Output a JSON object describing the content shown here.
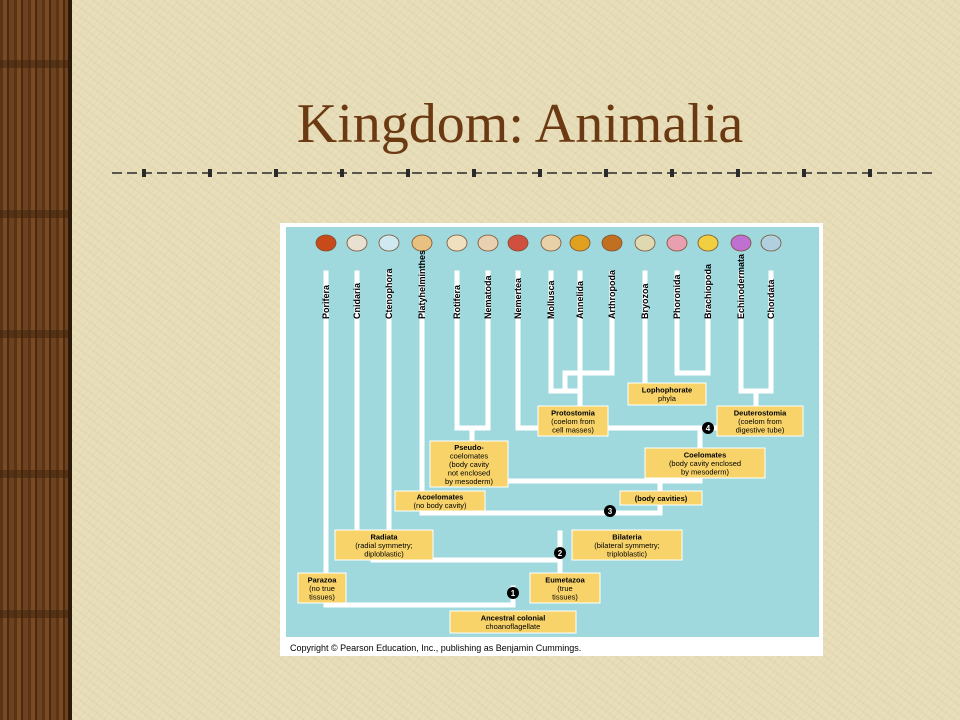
{
  "slide": {
    "title": "Kingdom: Animalia"
  },
  "diagram": {
    "taxa": [
      "Porifera",
      "Cnidaria",
      "Ctenophora",
      "Platyhelminthes",
      "Rotifera",
      "Nematoda",
      "Nemertea",
      "Mollusca",
      "Annelida",
      "Arthropoda",
      "Bryozoa",
      "Phoronida",
      "Brachiopoda",
      "Echinodermata",
      "Chordata"
    ],
    "boxes": [
      {
        "id": "ancestor",
        "lines": [
          "Ancestral colonial",
          "choanoflagellate"
        ]
      },
      {
        "id": "parazoa",
        "lines": [
          "Parazoa",
          "(no true",
          "tissues)"
        ]
      },
      {
        "id": "eumetazoa",
        "lines": [
          "Eumetazoa",
          "(true",
          "tissues)"
        ]
      },
      {
        "id": "radiata",
        "lines": [
          "Radiata",
          "(radial symmetry;",
          "diploblastic)"
        ]
      },
      {
        "id": "bilateria",
        "lines": [
          "Bilateria",
          "(bilateral symmetry;",
          "triploblastic)"
        ]
      },
      {
        "id": "acoelomates",
        "lines": [
          "Acoelomates",
          "(no body cavity)"
        ]
      },
      {
        "id": "body-cavities",
        "lines": [
          "(body cavities)"
        ]
      },
      {
        "id": "pseudocoelomates",
        "lines": [
          "Pseudo-",
          "coelomates",
          "(body cavity",
          "not enclosed",
          "by mesoderm)"
        ]
      },
      {
        "id": "coelomates",
        "lines": [
          "Coelomates",
          "(body cavity enclosed",
          "by mesoderm)"
        ]
      },
      {
        "id": "protostomia",
        "lines": [
          "Protostomia",
          "(coelom from",
          "cell masses)"
        ]
      },
      {
        "id": "deuterostomia",
        "lines": [
          "Deuterostomia",
          "(coelom from",
          "digestive tube)"
        ]
      },
      {
        "id": "lophophorate",
        "lines": [
          "Lophophorate",
          "phyla"
        ]
      }
    ],
    "nodes": [
      "1",
      "2",
      "3",
      "4"
    ],
    "copyright": "Copyright © Pearson Education, Inc., publishing as Benjamin Cummings."
  }
}
